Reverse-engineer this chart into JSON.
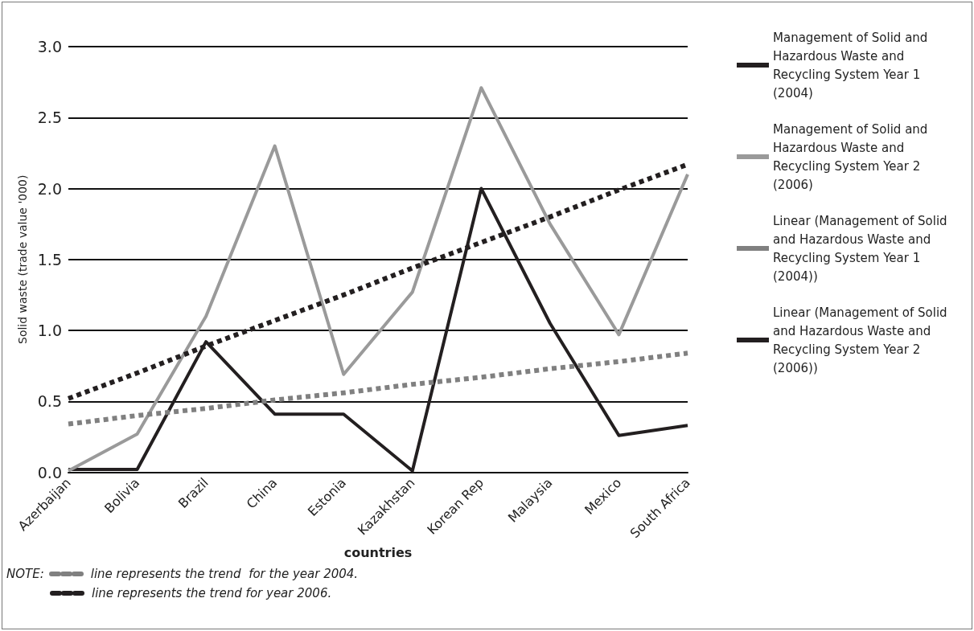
{
  "chart_data": {
    "type": "line",
    "xlabel": "countries",
    "ylabel": "Solid waste (trade value '000)",
    "categories": [
      "Azerbaijan",
      "Bolivia",
      "Brazil",
      "China",
      "Estonia",
      "Kazakhstan",
      "Korean Rep",
      "Malaysia",
      "Mexico",
      "South Africa"
    ],
    "series": [
      {
        "name": "Management of Solid and Hazardous Waste and Recycling System Year 1 (2004)",
        "color": "#231f20",
        "line_style": "solid",
        "values": [
          0.02,
          0.02,
          0.92,
          0.41,
          0.41,
          0.01,
          2.0,
          1.05,
          0.26,
          0.33
        ]
      },
      {
        "name": "Management of Solid and Hazardous Waste and Recycling System Year 2 (2006)",
        "color": "#9a9a9a",
        "line_style": "solid",
        "values": [
          0.01,
          0.27,
          1.1,
          2.3,
          0.69,
          1.27,
          2.71,
          1.75,
          0.97,
          2.1
        ]
      },
      {
        "name": "Linear (Management of Solid and Hazardous Waste and Recycling System Year 1 (2004))",
        "color": "#808080",
        "line_style": "dashed",
        "values": [
          0.34,
          0.4,
          0.45,
          0.51,
          0.56,
          0.62,
          0.67,
          0.73,
          0.78,
          0.84
        ]
      },
      {
        "name": "Linear (Management of Solid and Hazardous Waste and Recycling System Year 2 (2006))",
        "color": "#231f20",
        "line_style": "dashed",
        "values": [
          0.52,
          0.7,
          0.89,
          1.07,
          1.25,
          1.44,
          1.62,
          1.8,
          1.99,
          2.17
        ]
      }
    ],
    "ylim": [
      0,
      3
    ],
    "yticks": [
      {
        "value": 0,
        "label": "0.0"
      },
      {
        "value": 0.5,
        "label": "0.5"
      },
      {
        "value": 1,
        "label": "1.0"
      },
      {
        "value": 1.5,
        "label": "1.5"
      },
      {
        "value": 2,
        "label": "2.0"
      },
      {
        "value": 2.5,
        "label": "2.5"
      },
      {
        "value": 3,
        "label": "3.0"
      }
    ],
    "grid": "y",
    "legend": "right",
    "marker": "none",
    "annotations": [
      "NOTE:",
      "line represents the trend  for the year 2004.",
      "line represents the trend for year 2006."
    ]
  }
}
